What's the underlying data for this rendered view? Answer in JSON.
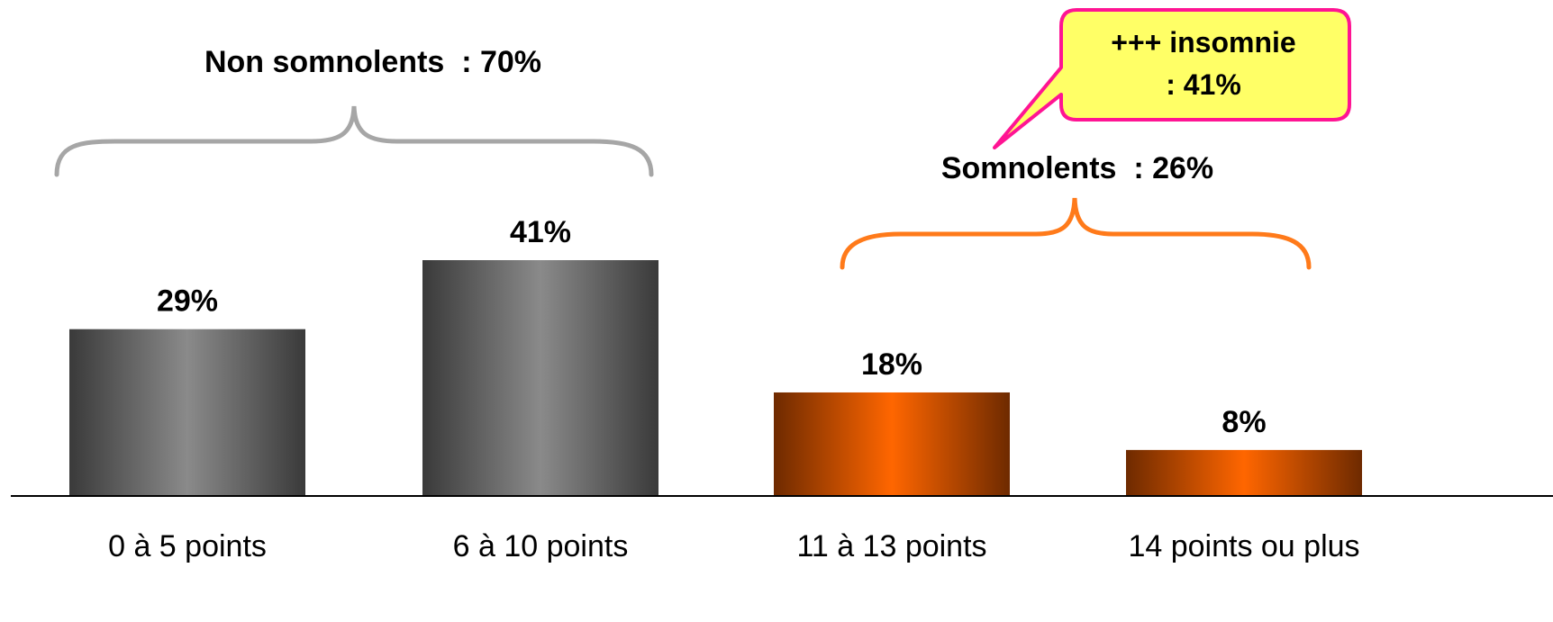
{
  "chart_data": {
    "type": "bar",
    "categories": [
      "0 à 5 points",
      "6 à 10 points",
      "11 à 13 points",
      "14 points ou plus"
    ],
    "values": [
      29,
      41,
      18,
      8
    ],
    "value_labels": [
      "29%",
      "41%",
      "18%",
      "8%"
    ],
    "bar_colors": [
      "#777777",
      "#777777",
      "#ff6600",
      "#ff6600"
    ],
    "ylim": [
      0,
      45
    ],
    "grid": false
  },
  "annotations": {
    "group_left": {
      "label": "Non somnolents  : 70%",
      "color": "#a6a6a6"
    },
    "group_right": {
      "label": "Somnolents  : 26%",
      "color": "#ff7a1a"
    },
    "callout": {
      "line1": "+++ insomnie",
      "line2": ": 41%",
      "fill": "#ffff66",
      "border": "#ff1493"
    }
  }
}
